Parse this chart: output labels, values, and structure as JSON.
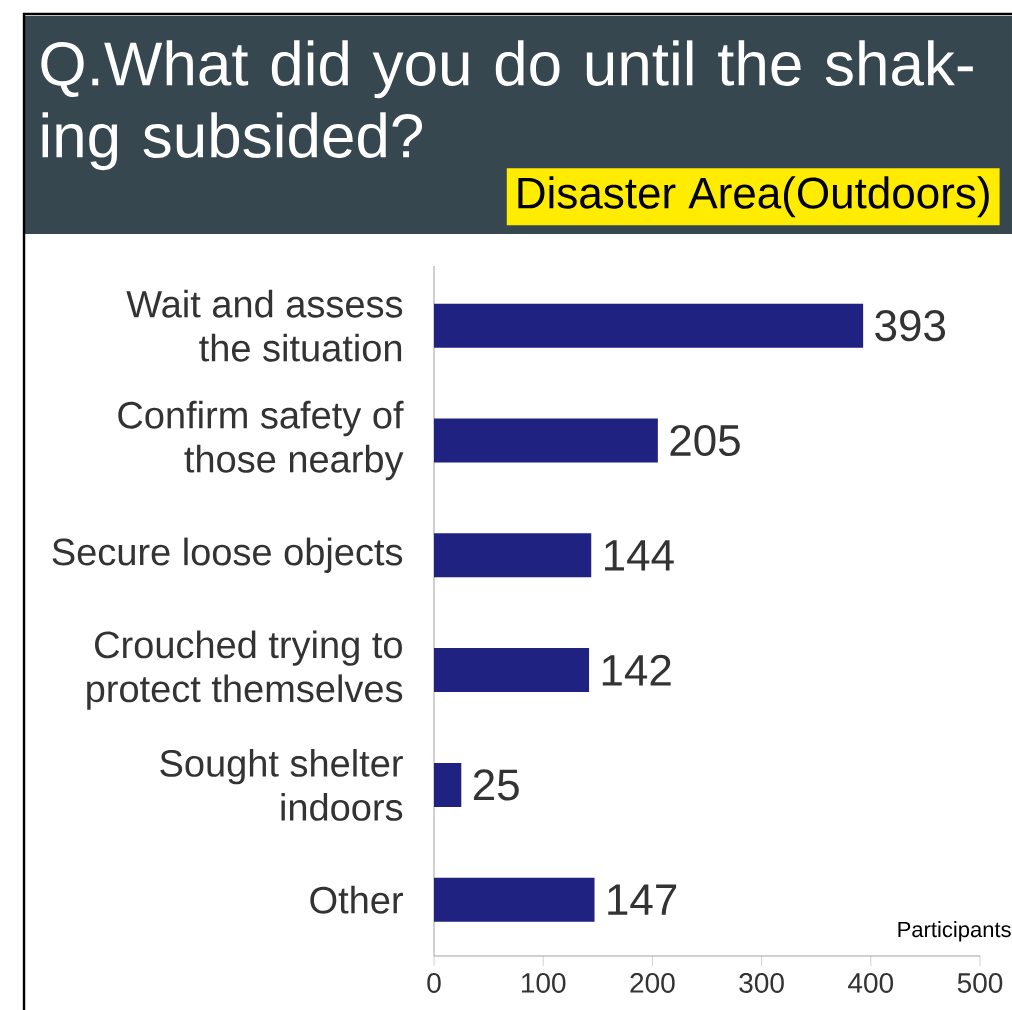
{
  "chart_data": {
    "type": "bar",
    "orientation": "horizontal",
    "title": "Q.What did you do until the shak-ing subsided?",
    "subtitle": "Disaster Area(Outdoors)",
    "xlabel": "Participants",
    "categories": [
      "Wait and assess the situation",
      "Confirm safety of those nearby",
      "Secure loose objects",
      "Crouched trying to protect themselves",
      "Sought shelter indoors",
      "Other"
    ],
    "values": [
      393,
      205,
      144,
      142,
      25,
      147
    ],
    "color": "#1f2280",
    "xlim": [
      0,
      500
    ],
    "xticks": [
      0,
      100,
      200,
      300,
      400,
      500
    ],
    "data_labels": true
  }
}
